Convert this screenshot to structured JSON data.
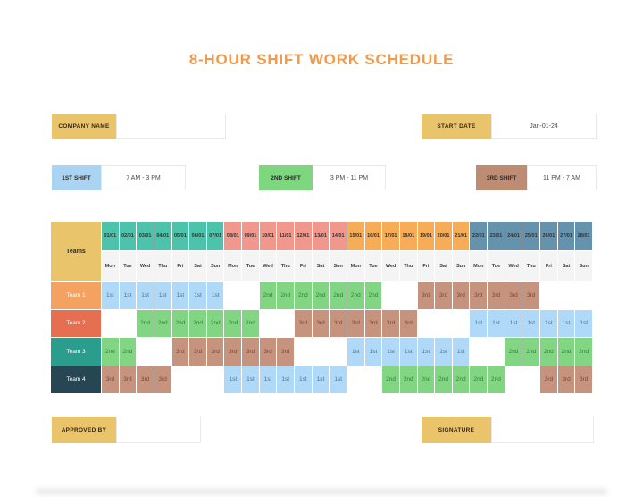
{
  "title": "8-HOUR SHIFT WORK SCHEDULE",
  "title_color": "#F2994A",
  "label_color": "#E9C46A",
  "fields": {
    "company": {
      "label": "COMPANY NAME",
      "value": ""
    },
    "start_date": {
      "label": "START DATE",
      "value": "Jan-01-24"
    },
    "approved_by": {
      "label": "APPROVED BY",
      "value": ""
    },
    "signature": {
      "label": "SIGNATURE",
      "value": ""
    }
  },
  "legend": [
    {
      "label": "1ST SHIFT",
      "time": "7 AM - 3 PM",
      "color": "#AAD4F2"
    },
    {
      "label": "2ND SHIFT",
      "time": "3 PM - 11 PM",
      "color": "#7ED67F"
    },
    {
      "label": "3RD SHIFT",
      "time": "11 PM - 7 AM",
      "color": "#BE8C72"
    }
  ],
  "table": {
    "teams_header": "Teams",
    "header_color": "#E9C46A",
    "day_names": [
      "Mon",
      "Tue",
      "Wed",
      "Thu",
      "Fri",
      "Sat",
      "Sun"
    ],
    "weeks": [
      {
        "color": "#4CC3AA",
        "dates": [
          "01/01",
          "02/01",
          "03/01",
          "04/01",
          "05/01",
          "06/01",
          "07/01"
        ]
      },
      {
        "color": "#F2978C",
        "dates": [
          "08/01",
          "09/01",
          "10/01",
          "11/01",
          "12/01",
          "13/01",
          "14/01"
        ]
      },
      {
        "color": "#F7AC57",
        "dates": [
          "15/01",
          "16/01",
          "17/01",
          "18/01",
          "19/01",
          "20/01",
          "21/01"
        ]
      },
      {
        "color": "#6592AD",
        "dates": [
          "22/01",
          "23/01",
          "24/01",
          "25/01",
          "26/01",
          "27/01",
          "28/01"
        ]
      }
    ],
    "shift_styles": {
      "1st": {
        "bg": "#AFD9F7",
        "text": "#49759E"
      },
      "2nd": {
        "bg": "#82D683",
        "text": "#2F7D3A"
      },
      "3rd": {
        "bg": "#C6937F",
        "text": "#7A4632"
      }
    },
    "teams": [
      {
        "name": "Team 1",
        "color": "#F4A261",
        "shifts": [
          "1st",
          "1st",
          "1st",
          "1st",
          "1st",
          "1st",
          "1st",
          "",
          "",
          "2nd",
          "2nd",
          "2nd",
          "2nd",
          "2nd",
          "2nd",
          "2nd",
          "",
          "",
          "3rd",
          "3rd",
          "3rd",
          "3rd",
          "3rd",
          "3rd",
          "3rd",
          "",
          "",
          ""
        ]
      },
      {
        "name": "Team 2",
        "color": "#E76F51",
        "shifts": [
          "",
          "",
          "2nd",
          "2nd",
          "2nd",
          "2nd",
          "2nd",
          "2nd",
          "2nd",
          "",
          "",
          "3rd",
          "3rd",
          "3rd",
          "3rd",
          "3rd",
          "3rd",
          "3rd",
          "",
          "",
          "",
          "1st",
          "1st",
          "1st",
          "1st",
          "1st",
          "1st",
          "1st"
        ]
      },
      {
        "name": "Team 3",
        "color": "#2A9D8F",
        "shifts": [
          "2nd",
          "2nd",
          "",
          "",
          "3rd",
          "3rd",
          "3rd",
          "3rd",
          "3rd",
          "3rd",
          "3rd",
          "",
          "",
          "",
          "1st",
          "1st",
          "1st",
          "1st",
          "1st",
          "1st",
          "1st",
          "",
          "",
          "2nd",
          "2nd",
          "2nd",
          "2nd",
          "2nd"
        ]
      },
      {
        "name": "Team 4",
        "color": "#264653",
        "shifts": [
          "3rd",
          "3rd",
          "3rd",
          "3rd",
          "",
          "",
          "",
          "1st",
          "1st",
          "1st",
          "1st",
          "1st",
          "1st",
          "1st",
          "",
          "",
          "2nd",
          "2nd",
          "2nd",
          "2nd",
          "2nd",
          "2nd",
          "2nd",
          "",
          "",
          "3rd",
          "3rd",
          "3rd"
        ]
      }
    ]
  }
}
